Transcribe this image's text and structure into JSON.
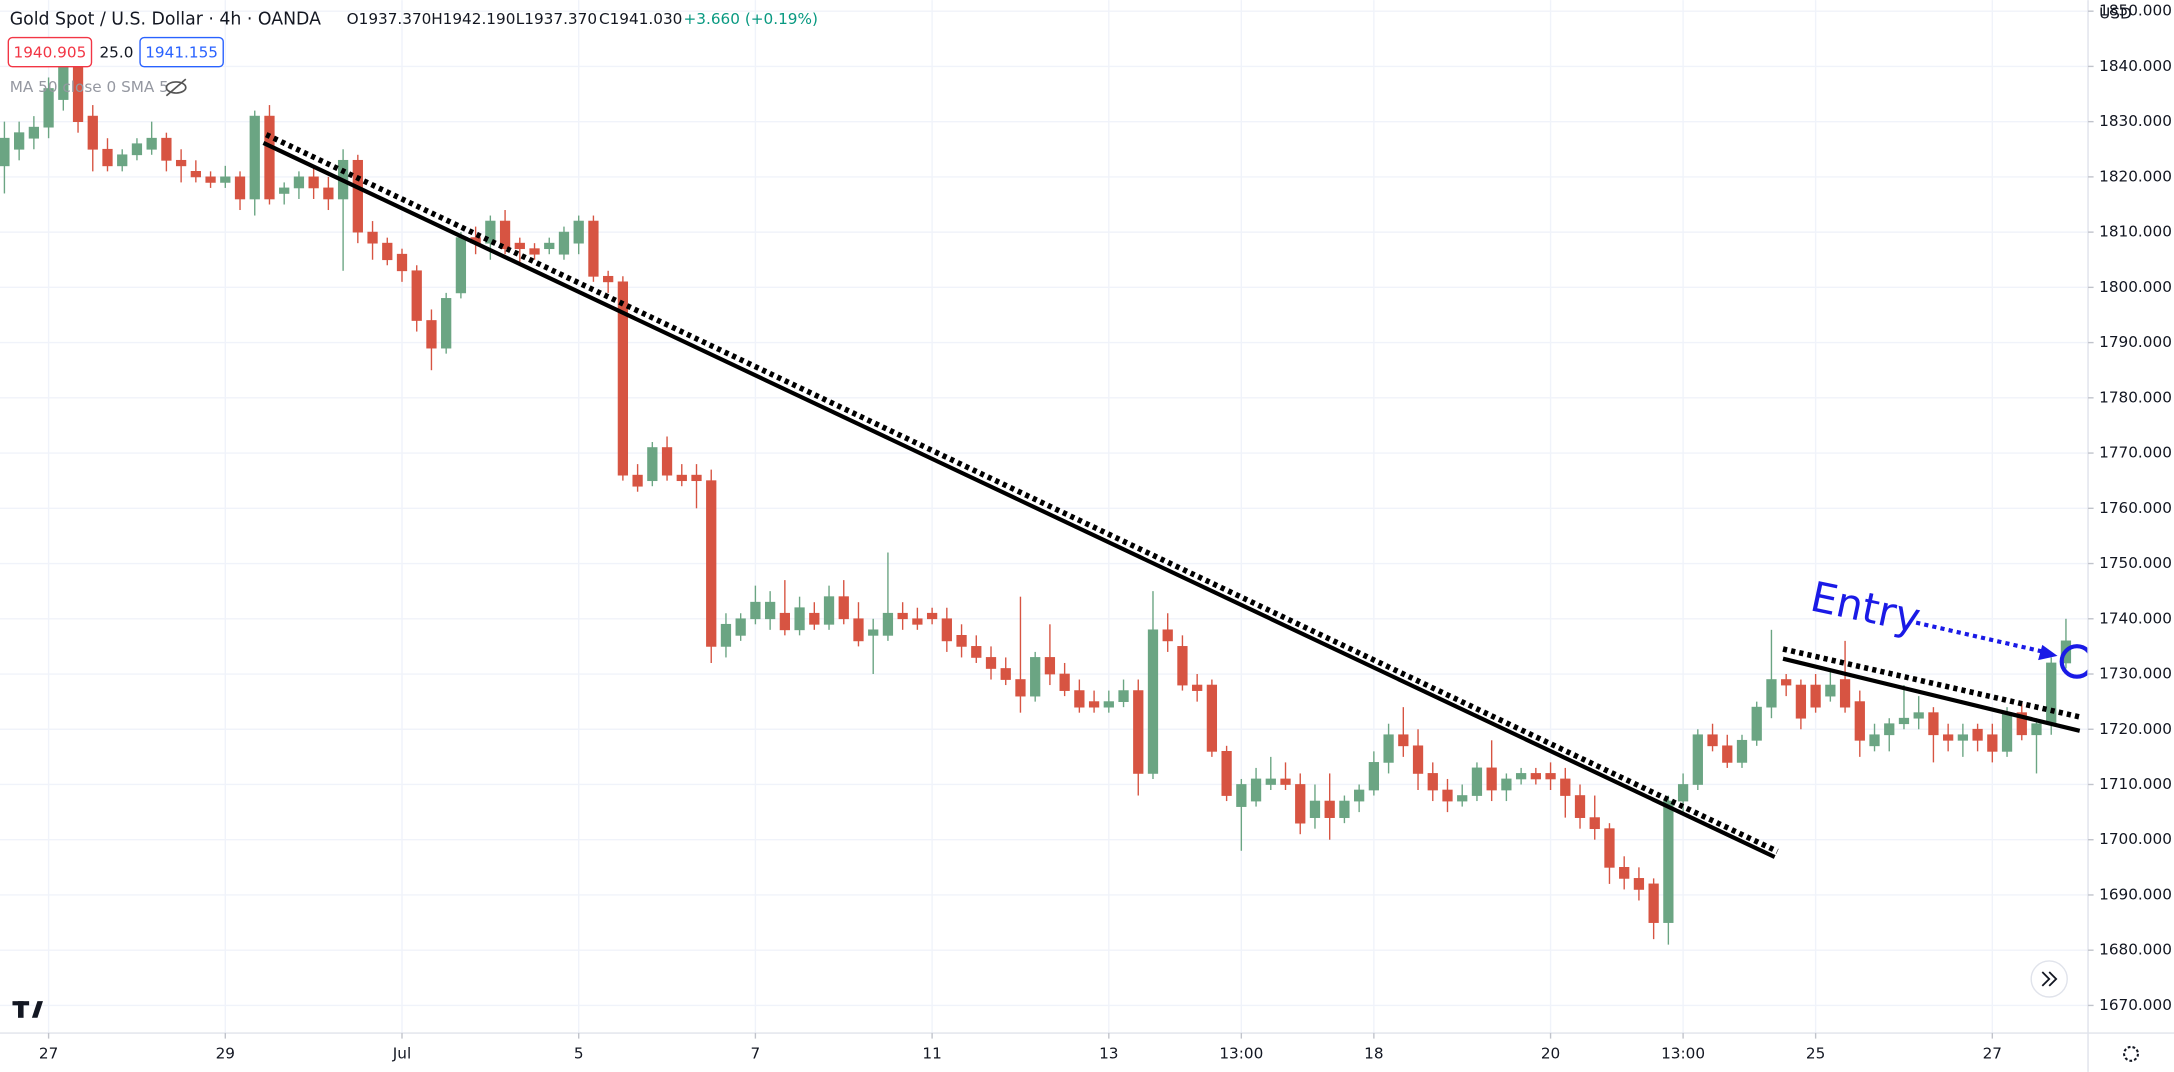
{
  "chart_data": {
    "type": "candlestick",
    "title": "Gold Spot / U.S. Dollar · 4h · OANDA",
    "ohlc_header": {
      "open": "O1937.370",
      "high": "H1942.190",
      "low": "L1937.370",
      "close": "C1941.030",
      "change": "+3.660 (+0.19%)"
    },
    "bid": "1940.905",
    "spread": "25.0",
    "ask": "1941.155",
    "indicator": "MA 50 close 0 SMA 5",
    "currency": "USD",
    "annotation": "Entry",
    "up_color": "#6ba583",
    "down_color": "#d75442",
    "grid": true,
    "ylim": [
      1665,
      1852
    ],
    "yticks": [
      {
        "value": 1670,
        "label": "1670.000"
      },
      {
        "value": 1680,
        "label": "1680.000"
      },
      {
        "value": 1690,
        "label": "1690.000"
      },
      {
        "value": 1700,
        "label": "1700.000"
      },
      {
        "value": 1710,
        "label": "1710.000"
      },
      {
        "value": 1720,
        "label": "1720.000"
      },
      {
        "value": 1730,
        "label": "1730.000"
      },
      {
        "value": 1740,
        "label": "1740.000"
      },
      {
        "value": 1750,
        "label": "1750.000"
      },
      {
        "value": 1760,
        "label": "1760.000"
      },
      {
        "value": 1770,
        "label": "1770.000"
      },
      {
        "value": 1780,
        "label": "1780.000"
      },
      {
        "value": 1790,
        "label": "1790.000"
      },
      {
        "value": 1800,
        "label": "1800.000"
      },
      {
        "value": 1810,
        "label": "1810.000"
      },
      {
        "value": 1820,
        "label": "1820.000"
      },
      {
        "value": 1830,
        "label": "1830.000"
      },
      {
        "value": 1840,
        "label": "1840.000"
      },
      {
        "value": 1850,
        "label": "1850.000"
      }
    ],
    "xlim": [
      -0.3,
      141.5
    ],
    "xticks": [
      {
        "value": 3,
        "label": "27"
      },
      {
        "value": 15,
        "label": "29"
      },
      {
        "value": 27,
        "label": "Jul"
      },
      {
        "value": 39,
        "label": "5"
      },
      {
        "value": 51,
        "label": "7"
      },
      {
        "value": 63,
        "label": "11"
      },
      {
        "value": 75,
        "label": "13"
      },
      {
        "value": 84,
        "label": "13:00"
      },
      {
        "value": 93,
        "label": "18"
      },
      {
        "value": 105,
        "label": "20"
      },
      {
        "value": 114,
        "label": "13:00"
      },
      {
        "value": 123,
        "label": "25"
      },
      {
        "value": 135,
        "label": "27"
      }
    ],
    "open": [
      1822,
      1825,
      1827,
      1829,
      1834,
      1840,
      1831,
      1825,
      1822,
      1824,
      1825,
      1827,
      1823,
      1821,
      1820,
      1819,
      1820,
      1816,
      1831,
      1817,
      1818,
      1820,
      1818,
      1816,
      1823,
      1810,
      1808,
      1806,
      1803,
      1794,
      1789,
      1799,
      1809,
      1808,
      1812,
      1808,
      1807,
      1807,
      1806,
      1808,
      1812,
      1802,
      1801,
      1766,
      1765,
      1771,
      1766,
      1766,
      1765,
      1735,
      1737,
      1740,
      1740,
      1741,
      1738,
      1741,
      1739,
      1744,
      1740,
      1737,
      1737,
      1741,
      1740,
      1741,
      1740,
      1737,
      1735,
      1733,
      1731,
      1729,
      1726,
      1733,
      1730,
      1727,
      1725,
      1724,
      1725,
      1727,
      1712,
      1738,
      1735,
      1728,
      1728,
      1716,
      1706,
      1707,
      1710,
      1711,
      1710,
      1704,
      1707,
      1704,
      1707,
      1709,
      1714,
      1719,
      1717,
      1712,
      1709,
      1707,
      1708,
      1713,
      1709,
      1711,
      1712,
      1712,
      1711,
      1708,
      1704,
      1702,
      1695,
      1693,
      1692,
      1685,
      1707,
      1710,
      1719,
      1717,
      1714,
      1718,
      1724,
      1729,
      1728,
      1728,
      1726,
      1729,
      1725,
      1717,
      1719,
      1721,
      1722,
      1723,
      1719,
      1718,
      1720,
      1719,
      1716,
      1723,
      1719,
      1721,
      1732
    ],
    "high": [
      1830,
      1830,
      1831,
      1838,
      1842,
      1841,
      1833,
      1827,
      1825,
      1827,
      1830,
      1828,
      1825,
      1823,
      1821,
      1822,
      1821,
      1832,
      1833,
      1819,
      1821,
      1822,
      1820,
      1825,
      1824,
      1812,
      1809,
      1807,
      1804,
      1796,
      1799,
      1810,
      1811,
      1813,
      1814,
      1809,
      1808,
      1809,
      1811,
      1813,
      1813,
      1803,
      1802,
      1768,
      1772,
      1773,
      1768,
      1768,
      1767,
      1741,
      1741,
      1746,
      1745,
      1747,
      1744,
      1743,
      1746,
      1747,
      1743,
      1740,
      1752,
      1743,
      1742,
      1742,
      1742,
      1739,
      1737,
      1735,
      1733,
      1744,
      1734,
      1739,
      1732,
      1729,
      1727,
      1727,
      1729,
      1729,
      1745,
      1741,
      1737,
      1730,
      1729,
      1717,
      1711,
      1713,
      1715,
      1714,
      1712,
      1710,
      1712,
      1708,
      1710,
      1716,
      1721,
      1724,
      1720,
      1714,
      1711,
      1710,
      1714,
      1718,
      1712,
      1713,
      1713,
      1714,
      1713,
      1710,
      1708,
      1703,
      1697,
      1695,
      1693,
      1708,
      1712,
      1720,
      1721,
      1719,
      1719,
      1725,
      1738,
      1730,
      1729,
      1730,
      1731,
      1736,
      1727,
      1721,
      1722,
      1728,
      1726,
      1724,
      1721,
      1721,
      1721,
      1721,
      1724,
      1725,
      1722,
      1733,
      1740
    ],
    "low": [
      1817,
      1823,
      1825,
      1827,
      1832,
      1828,
      1821,
      1821,
      1821,
      1823,
      1824,
      1821,
      1819,
      1819,
      1818,
      1818,
      1814,
      1813,
      1815,
      1815,
      1816,
      1816,
      1814,
      1803,
      1808,
      1805,
      1804,
      1801,
      1792,
      1785,
      1788,
      1798,
      1806,
      1805,
      1806,
      1804,
      1805,
      1806,
      1805,
      1806,
      1801,
      1799,
      1765,
      1763,
      1764,
      1765,
      1764,
      1760,
      1732,
      1733,
      1736,
      1739,
      1738,
      1737,
      1737,
      1738,
      1738,
      1739,
      1735,
      1730,
      1736,
      1738,
      1738,
      1739,
      1734,
      1733,
      1732,
      1729,
      1728,
      1723,
      1725,
      1728,
      1726,
      1723,
      1723,
      1723,
      1724,
      1708,
      1711,
      1734,
      1727,
      1725,
      1715,
      1707,
      1698,
      1706,
      1709,
      1709,
      1701,
      1702,
      1700,
      1703,
      1705,
      1708,
      1712,
      1715,
      1709,
      1707,
      1705,
      1706,
      1707,
      1707,
      1707,
      1710,
      1710,
      1709,
      1704,
      1702,
      1700,
      1692,
      1691,
      1689,
      1682,
      1681,
      1705,
      1709,
      1716,
      1713,
      1713,
      1717,
      1722,
      1726,
      1720,
      1723,
      1725,
      1723,
      1715,
      1716,
      1716,
      1720,
      1720,
      1714,
      1716,
      1715,
      1716,
      1714,
      1715,
      1718,
      1712,
      1719,
      1731
    ],
    "close": [
      1827,
      1828,
      1829,
      1836,
      1840,
      1830,
      1825,
      1822,
      1824,
      1826,
      1827,
      1823,
      1822,
      1820,
      1819,
      1820,
      1816,
      1831,
      1816,
      1818,
      1820,
      1818,
      1816,
      1823,
      1810,
      1808,
      1805,
      1803,
      1794,
      1789,
      1798,
      1809,
      1808,
      1812,
      1807,
      1807,
      1806,
      1808,
      1810,
      1812,
      1802,
      1801,
      1766,
      1764,
      1771,
      1766,
      1765,
      1765,
      1735,
      1739,
      1740,
      1743,
      1743,
      1738,
      1742,
      1739,
      1744,
      1740,
      1736,
      1738,
      1741,
      1740,
      1739,
      1740,
      1736,
      1735,
      1733,
      1731,
      1729,
      1726,
      1733,
      1730,
      1727,
      1724,
      1724,
      1725,
      1727,
      1712,
      1738,
      1736,
      1728,
      1727,
      1716,
      1708,
      1710,
      1711,
      1711,
      1710,
      1703,
      1707,
      1704,
      1707,
      1709,
      1714,
      1719,
      1717,
      1712,
      1709,
      1707,
      1708,
      1713,
      1709,
      1711,
      1712,
      1711,
      1711,
      1708,
      1704,
      1702,
      1695,
      1693,
      1691,
      1685,
      1707,
      1710,
      1719,
      1717,
      1714,
      1718,
      1724,
      1729,
      1728,
      1722,
      1724,
      1728,
      1724,
      1718,
      1719,
      1721,
      1722,
      1723,
      1719,
      1718,
      1719,
      1718,
      1716,
      1723,
      1719,
      1721,
      1732,
      1736
    ]
  }
}
